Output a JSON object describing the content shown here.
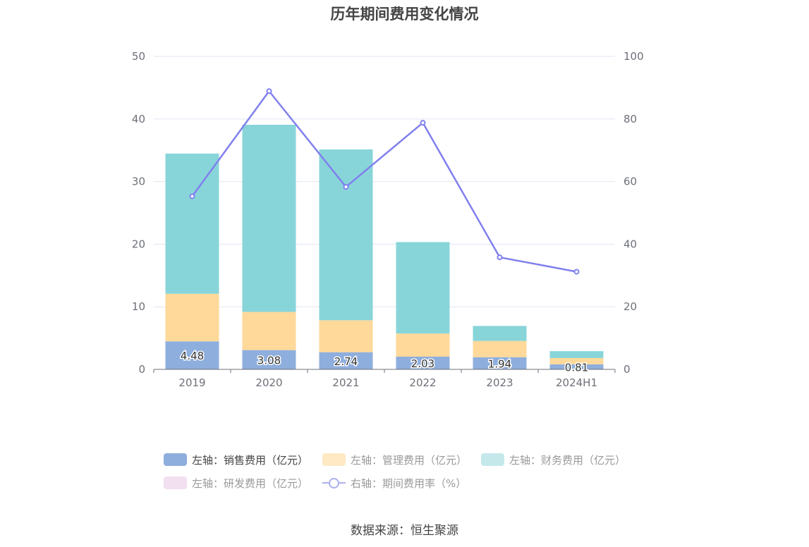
{
  "chart_data": {
    "type": "bar",
    "title": "历年期间费用变化情况",
    "categories": [
      "2019",
      "2020",
      "2021",
      "2022",
      "2023",
      "2024H1"
    ],
    "stacked": true,
    "y_left": {
      "min": 0,
      "max": 50,
      "ticks": [
        "0",
        "10",
        "20",
        "30",
        "40",
        "50"
      ]
    },
    "y_right": {
      "min": 0,
      "max": 100,
      "ticks": [
        "0",
        "20",
        "40",
        "60",
        "80",
        "100"
      ]
    },
    "grid": true,
    "legend_position": "bottom",
    "series": [
      {
        "name": "左轴：销售费用（亿元）",
        "axis": "left",
        "kind": "bar",
        "color": "#8eaedd",
        "legend_active": true,
        "values": [
          4.48,
          3.08,
          2.74,
          2.03,
          1.94,
          0.81
        ],
        "labels": [
          "4.48",
          "3.08",
          "2.74",
          "2.03",
          "1.94",
          "0.81"
        ]
      },
      {
        "name": "左轴：管理费用（亿元）",
        "axis": "left",
        "kind": "bar",
        "color": "#ffd99a",
        "legend_active": false,
        "values": [
          7.6,
          6.1,
          5.1,
          3.7,
          2.6,
          1.0
        ]
      },
      {
        "name": "左轴：财务费用（亿元）",
        "axis": "left",
        "kind": "bar",
        "color": "#88d5d9",
        "legend_active": false,
        "values": [
          22.4,
          29.9,
          27.3,
          14.6,
          2.4,
          1.1
        ]
      },
      {
        "name": "左轴：研发费用（亿元）",
        "axis": "left",
        "kind": "bar",
        "color": "#f2d7ee",
        "legend_active": false,
        "values": [
          0,
          0,
          0,
          0,
          0,
          0
        ]
      },
      {
        "name": "右轴：期间费用率（%）",
        "axis": "right",
        "kind": "line",
        "color": "#8080ee",
        "legend_active": false,
        "values": [
          55.3,
          88.9,
          58.3,
          78.8,
          35.8,
          31.2
        ]
      }
    ],
    "legend_swatches": [
      "#8eaedd",
      "#ffe9c4",
      "#c5e9eb",
      "#f2dff0",
      "#aab0ee"
    ]
  },
  "source": "数据来源：恒生聚源"
}
